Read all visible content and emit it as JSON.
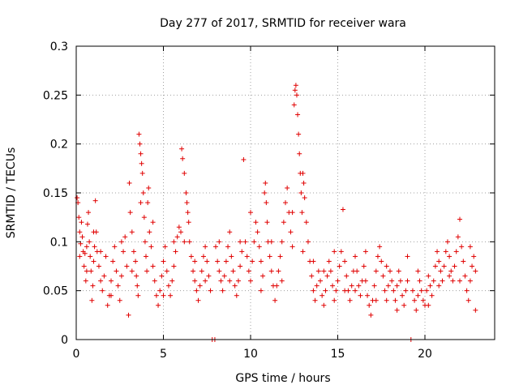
{
  "chart_data": {
    "type": "scatter",
    "title": "Day 277 of 2017, SRMTID for receiver wara",
    "xlabel": "GPS time / hours",
    "ylabel": "SRMTID / TECUs",
    "xlim": [
      0,
      24
    ],
    "ylim": [
      0,
      0.3
    ],
    "x_ticks": [
      0,
      5,
      10,
      15,
      20
    ],
    "x_tick_labels": [
      "0",
      "5",
      "10",
      "15",
      "20"
    ],
    "y_ticks": [
      0,
      0.05,
      0.1,
      0.15,
      0.2,
      0.25,
      0.3
    ],
    "y_tick_labels": [
      "0",
      "0.05",
      "0.1",
      "0.15",
      "0.2",
      "0.25",
      "0.3"
    ],
    "grid": true,
    "marker": "plus",
    "color": "#e00000",
    "series": [
      {
        "name": "SRMTID",
        "points": [
          [
            0.05,
            0.145
          ],
          [
            0.1,
            0.14
          ],
          [
            0.15,
            0.125
          ],
          [
            0.2,
            0.11
          ],
          [
            0.25,
            0.098
          ],
          [
            0.3,
            0.12
          ],
          [
            0.35,
            0.105
          ],
          [
            0.4,
            0.09
          ],
          [
            0.45,
            0.075
          ],
          [
            0.5,
            0.088
          ],
          [
            0.55,
            0.06
          ],
          [
            0.6,
            0.095
          ],
          [
            0.65,
            0.118
          ],
          [
            0.7,
            0.13
          ],
          [
            0.75,
            0.1
          ],
          [
            0.8,
            0.085
          ],
          [
            0.85,
            0.07
          ],
          [
            0.9,
            0.04
          ],
          [
            0.95,
            0.055
          ],
          [
            1.0,
            0.08
          ],
          [
            1.05,
            0.095
          ],
          [
            1.1,
            0.142
          ],
          [
            1.15,
            0.11
          ],
          [
            1.2,
            0.09
          ],
          [
            1.3,
            0.075
          ],
          [
            1.4,
            0.06
          ],
          [
            1.5,
            0.05
          ],
          [
            1.6,
            0.065
          ],
          [
            1.7,
            0.085
          ],
          [
            1.8,
            0.035
          ],
          [
            1.9,
            0.045
          ],
          [
            2.0,
            0.06
          ],
          [
            2.1,
            0.08
          ],
          [
            2.2,
            0.095
          ],
          [
            2.3,
            0.07
          ],
          [
            2.4,
            0.055
          ],
          [
            2.5,
            0.04
          ],
          [
            2.6,
            0.065
          ],
          [
            2.7,
            0.09
          ],
          [
            2.8,
            0.105
          ],
          [
            2.9,
            0.075
          ],
          [
            3.0,
            0.025
          ],
          [
            3.05,
            0.16
          ],
          [
            3.1,
            0.13
          ],
          [
            3.2,
            0.11
          ],
          [
            3.3,
            0.09
          ],
          [
            3.4,
            0.08
          ],
          [
            3.45,
            0.065
          ],
          [
            3.5,
            0.055
          ],
          [
            3.55,
            0.045
          ],
          [
            3.6,
            0.21
          ],
          [
            3.65,
            0.2
          ],
          [
            3.7,
            0.19
          ],
          [
            3.75,
            0.18
          ],
          [
            3.8,
            0.17
          ],
          [
            3.85,
            0.15
          ],
          [
            3.9,
            0.125
          ],
          [
            3.95,
            0.1
          ],
          [
            4.0,
            0.085
          ],
          [
            4.05,
            0.07
          ],
          [
            4.1,
            0.14
          ],
          [
            4.15,
            0.155
          ],
          [
            4.2,
            0.11
          ],
          [
            4.3,
            0.095
          ],
          [
            4.4,
            0.075
          ],
          [
            4.5,
            0.06
          ],
          [
            4.6,
            0.045
          ],
          [
            4.7,
            0.035
          ],
          [
            4.8,
            0.05
          ],
          [
            4.9,
            0.065
          ],
          [
            5.0,
            0.08
          ],
          [
            5.1,
            0.095
          ],
          [
            5.2,
            0.07
          ],
          [
            5.3,
            0.055
          ],
          [
            5.4,
            0.045
          ],
          [
            5.5,
            0.06
          ],
          [
            5.6,
            0.075
          ],
          [
            5.7,
            0.09
          ],
          [
            5.8,
            0.105
          ],
          [
            5.9,
            0.115
          ],
          [
            6.0,
            0.11
          ],
          [
            6.05,
            0.195
          ],
          [
            6.1,
            0.185
          ],
          [
            6.2,
            0.17
          ],
          [
            6.3,
            0.15
          ],
          [
            6.35,
            0.14
          ],
          [
            6.4,
            0.13
          ],
          [
            6.45,
            0.12
          ],
          [
            6.5,
            0.1
          ],
          [
            6.6,
            0.085
          ],
          [
            6.7,
            0.07
          ],
          [
            6.8,
            0.06
          ],
          [
            6.9,
            0.05
          ],
          [
            7.0,
            0.04
          ],
          [
            7.1,
            0.055
          ],
          [
            7.2,
            0.07
          ],
          [
            7.3,
            0.085
          ],
          [
            7.4,
            0.095
          ],
          [
            7.5,
            0.08
          ],
          [
            7.6,
            0.065
          ],
          [
            7.7,
            0.05
          ],
          [
            7.8,
            0.0
          ],
          [
            7.95,
            0.0
          ],
          [
            8.0,
            0.095
          ],
          [
            8.1,
            0.08
          ],
          [
            8.2,
            0.07
          ],
          [
            8.3,
            0.06
          ],
          [
            8.4,
            0.05
          ],
          [
            8.5,
            0.065
          ],
          [
            8.6,
            0.08
          ],
          [
            8.7,
            0.095
          ],
          [
            8.8,
            0.11
          ],
          [
            8.9,
            0.085
          ],
          [
            9.0,
            0.07
          ],
          [
            9.1,
            0.055
          ],
          [
            9.2,
            0.045
          ],
          [
            9.3,
            0.06
          ],
          [
            9.4,
            0.075
          ],
          [
            9.5,
            0.09
          ],
          [
            9.6,
            0.184
          ],
          [
            9.7,
            0.1
          ],
          [
            9.8,
            0.085
          ],
          [
            9.9,
            0.07
          ],
          [
            10.0,
            0.06
          ],
          [
            10.1,
            0.08
          ],
          [
            10.2,
            0.1
          ],
          [
            10.3,
            0.12
          ],
          [
            10.4,
            0.11
          ],
          [
            10.5,
            0.095
          ],
          [
            10.6,
            0.08
          ],
          [
            10.7,
            0.065
          ],
          [
            10.8,
            0.15
          ],
          [
            10.85,
            0.16
          ],
          [
            10.9,
            0.14
          ],
          [
            10.95,
            0.12
          ],
          [
            11.0,
            0.1
          ],
          [
            11.1,
            0.085
          ],
          [
            11.2,
            0.07
          ],
          [
            11.3,
            0.055
          ],
          [
            11.4,
            0.04
          ],
          [
            11.5,
            0.055
          ],
          [
            11.6,
            0.07
          ],
          [
            11.7,
            0.085
          ],
          [
            11.8,
            0.1
          ],
          [
            11.9,
            0.12
          ],
          [
            12.0,
            0.14
          ],
          [
            12.1,
            0.155
          ],
          [
            12.2,
            0.13
          ],
          [
            12.3,
            0.11
          ],
          [
            12.4,
            0.095
          ],
          [
            12.5,
            0.24
          ],
          [
            12.55,
            0.255
          ],
          [
            12.6,
            0.26
          ],
          [
            12.65,
            0.25
          ],
          [
            12.7,
            0.23
          ],
          [
            12.75,
            0.21
          ],
          [
            12.8,
            0.19
          ],
          [
            12.85,
            0.17
          ],
          [
            12.9,
            0.15
          ],
          [
            12.95,
            0.13
          ],
          [
            13.0,
            0.17
          ],
          [
            13.05,
            0.16
          ],
          [
            13.1,
            0.145
          ],
          [
            13.2,
            0.12
          ],
          [
            13.3,
            0.1
          ],
          [
            13.4,
            0.08
          ],
          [
            13.5,
            0.065
          ],
          [
            13.6,
            0.05
          ],
          [
            13.7,
            0.04
          ],
          [
            13.8,
            0.055
          ],
          [
            13.9,
            0.07
          ],
          [
            14.0,
            0.06
          ],
          [
            14.1,
            0.045
          ],
          [
            14.2,
            0.035
          ],
          [
            14.3,
            0.05
          ],
          [
            14.4,
            0.065
          ],
          [
            14.5,
            0.08
          ],
          [
            14.6,
            0.07
          ],
          [
            14.7,
            0.055
          ],
          [
            14.8,
            0.04
          ],
          [
            14.9,
            0.05
          ],
          [
            15.0,
            0.06
          ],
          [
            15.1,
            0.075
          ],
          [
            15.2,
            0.09
          ],
          [
            15.3,
            0.133
          ],
          [
            15.4,
            0.08
          ],
          [
            15.5,
            0.065
          ],
          [
            15.6,
            0.05
          ],
          [
            15.7,
            0.04
          ],
          [
            15.8,
            0.055
          ],
          [
            15.9,
            0.07
          ],
          [
            16.0,
            0.085
          ],
          [
            16.1,
            0.07
          ],
          [
            16.2,
            0.055
          ],
          [
            16.3,
            0.045
          ],
          [
            16.4,
            0.06
          ],
          [
            16.5,
            0.075
          ],
          [
            16.6,
            0.06
          ],
          [
            16.7,
            0.045
          ],
          [
            16.8,
            0.035
          ],
          [
            16.9,
            0.025
          ],
          [
            17.0,
            0.04
          ],
          [
            17.1,
            0.055
          ],
          [
            17.2,
            0.07
          ],
          [
            17.3,
            0.085
          ],
          [
            17.4,
            0.095
          ],
          [
            17.5,
            0.08
          ],
          [
            17.6,
            0.065
          ],
          [
            17.7,
            0.05
          ],
          [
            17.8,
            0.04
          ],
          [
            17.9,
            0.055
          ],
          [
            18.0,
            0.07
          ],
          [
            18.1,
            0.06
          ],
          [
            18.2,
            0.05
          ],
          [
            18.3,
            0.04
          ],
          [
            18.4,
            0.055
          ],
          [
            18.5,
            0.07
          ],
          [
            18.6,
            0.06
          ],
          [
            18.7,
            0.045
          ],
          [
            18.8,
            0.035
          ],
          [
            18.9,
            0.05
          ],
          [
            19.0,
            0.06
          ],
          [
            19.2,
            0.0
          ],
          [
            19.3,
            0.05
          ],
          [
            19.4,
            0.04
          ],
          [
            19.5,
            0.03
          ],
          [
            19.6,
            0.045
          ],
          [
            19.7,
            0.06
          ],
          [
            19.8,
            0.05
          ],
          [
            19.9,
            0.04
          ],
          [
            20.0,
            0.035
          ],
          [
            20.1,
            0.05
          ],
          [
            20.2,
            0.065
          ],
          [
            20.3,
            0.055
          ],
          [
            20.4,
            0.045
          ],
          [
            20.5,
            0.06
          ],
          [
            20.6,
            0.075
          ],
          [
            20.7,
            0.09
          ],
          [
            20.8,
            0.08
          ],
          [
            20.9,
            0.07
          ],
          [
            21.0,
            0.06
          ],
          [
            21.1,
            0.075
          ],
          [
            21.2,
            0.09
          ],
          [
            21.3,
            0.1
          ],
          [
            21.4,
            0.085
          ],
          [
            21.5,
            0.07
          ],
          [
            21.6,
            0.06
          ],
          [
            21.7,
            0.075
          ],
          [
            21.8,
            0.09
          ],
          [
            21.9,
            0.105
          ],
          [
            22.0,
            0.123
          ],
          [
            22.1,
            0.095
          ],
          [
            22.2,
            0.08
          ],
          [
            22.3,
            0.065
          ],
          [
            22.4,
            0.05
          ],
          [
            22.5,
            0.04
          ],
          [
            22.6,
            0.06
          ],
          [
            22.7,
            0.075
          ],
          [
            22.8,
            0.085
          ],
          [
            22.9,
            0.07
          ],
          [
            0.2,
            0.085
          ],
          [
            0.6,
            0.07
          ],
          [
            1.0,
            0.11
          ],
          [
            1.4,
            0.09
          ],
          [
            2.0,
            0.045
          ],
          [
            2.6,
            0.1
          ],
          [
            3.2,
            0.07
          ],
          [
            3.7,
            0.14
          ],
          [
            4.4,
            0.12
          ],
          [
            5.0,
            0.045
          ],
          [
            5.6,
            0.1
          ],
          [
            6.2,
            0.1
          ],
          [
            6.8,
            0.08
          ],
          [
            7.4,
            0.06
          ],
          [
            8.2,
            0.1
          ],
          [
            8.8,
            0.06
          ],
          [
            9.4,
            0.1
          ],
          [
            10.0,
            0.13
          ],
          [
            10.6,
            0.05
          ],
          [
            11.2,
            0.1
          ],
          [
            11.8,
            0.06
          ],
          [
            12.4,
            0.13
          ],
          [
            13.0,
            0.09
          ],
          [
            13.6,
            0.08
          ],
          [
            14.2,
            0.07
          ],
          [
            14.8,
            0.09
          ],
          [
            15.4,
            0.05
          ],
          [
            16.0,
            0.05
          ],
          [
            16.6,
            0.09
          ],
          [
            17.2,
            0.04
          ],
          [
            17.8,
            0.075
          ],
          [
            18.4,
            0.03
          ],
          [
            19.0,
            0.085
          ],
          [
            19.6,
            0.07
          ],
          [
            20.2,
            0.035
          ],
          [
            20.8,
            0.055
          ],
          [
            21.4,
            0.065
          ],
          [
            22.0,
            0.06
          ],
          [
            22.6,
            0.095
          ],
          [
            22.9,
            0.03
          ]
        ]
      }
    ]
  }
}
